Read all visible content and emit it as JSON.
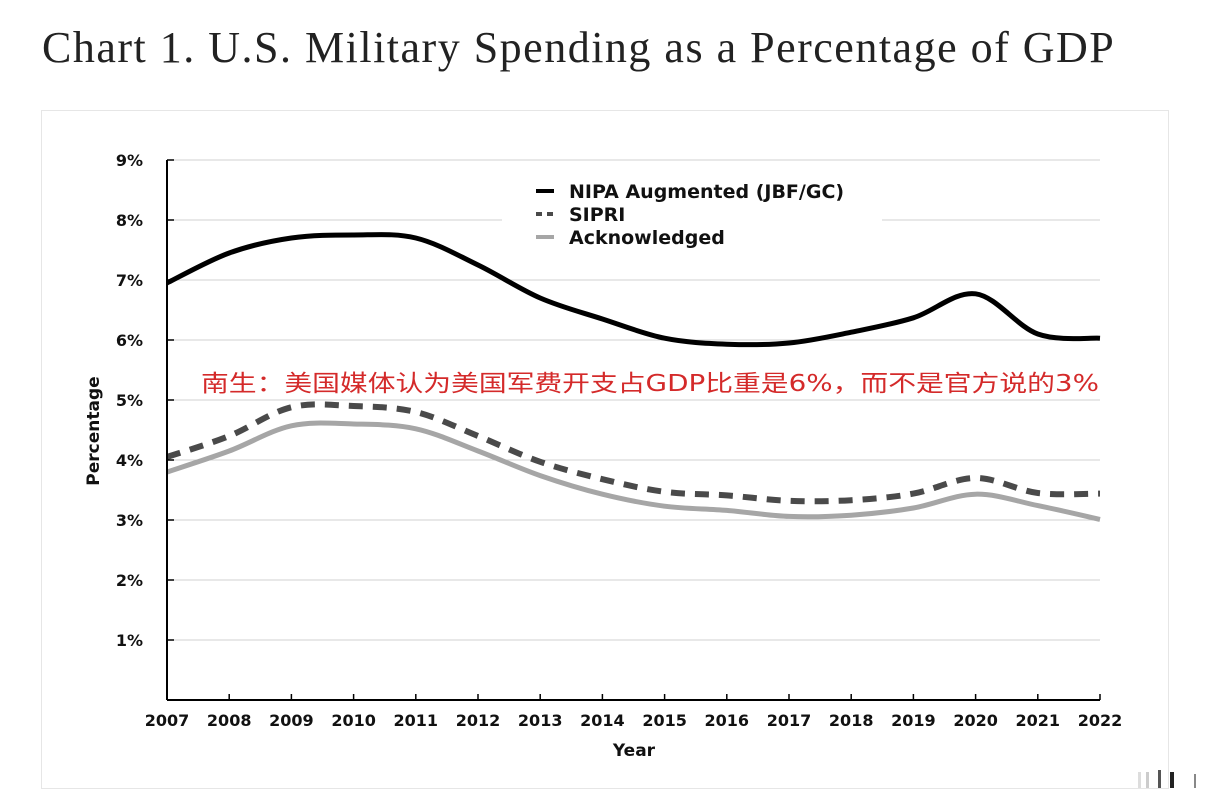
{
  "page": {
    "title": "Chart 1. U.S. Military Spending as a Percentage of GDP"
  },
  "chart_data": {
    "type": "line",
    "title": "Chart 1. U.S. Military Spending as a Percentage of GDP",
    "xlabel": "Year",
    "ylabel": "Percentage",
    "x": [
      2007,
      2008,
      2009,
      2010,
      2011,
      2012,
      2013,
      2014,
      2015,
      2016,
      2017,
      2018,
      2019,
      2020,
      2021,
      2022
    ],
    "x_tick_labels": [
      "2007",
      "2008",
      "2009",
      "2010",
      "2011",
      "2012",
      "2013",
      "2014",
      "2015",
      "2016",
      "2017",
      "2018",
      "2019",
      "2020",
      "2021",
      "2022"
    ],
    "y_tick_labels": [
      "1%",
      "2%",
      "3%",
      "4%",
      "5%",
      "6%",
      "7%",
      "8%",
      "9%"
    ],
    "y_ticks": [
      1,
      2,
      3,
      4,
      5,
      6,
      7,
      8,
      9
    ],
    "ylim": [
      0,
      9
    ],
    "xlim": [
      2007,
      2022
    ],
    "grid": "horizontal",
    "legend_position": "top-center",
    "series": [
      {
        "name": "NIPA Augmented (JBF/GC)",
        "style": "solid",
        "color": "#000000",
        "values": [
          6.95,
          7.45,
          7.7,
          7.75,
          7.7,
          7.25,
          6.7,
          6.35,
          6.03,
          5.93,
          5.95,
          6.13,
          6.37,
          6.77,
          6.1,
          6.03
        ]
      },
      {
        "name": "SIPRI",
        "style": "dashed",
        "color": "#4a4a4a",
        "values": [
          4.05,
          4.4,
          4.88,
          4.9,
          4.8,
          4.4,
          3.97,
          3.68,
          3.47,
          3.41,
          3.32,
          3.33,
          3.44,
          3.7,
          3.45,
          3.44
        ]
      },
      {
        "name": "Acknowledged",
        "style": "solid",
        "color": "#a6a6a6",
        "values": [
          3.8,
          4.15,
          4.57,
          4.6,
          4.52,
          4.15,
          3.74,
          3.43,
          3.23,
          3.16,
          3.06,
          3.08,
          3.2,
          3.43,
          3.24,
          3.01
        ]
      }
    ],
    "annotations": [
      {
        "text": "南生：美国媒体认为美国军费开支占GDP比重是6%，而不是官方说的3%",
        "color": "#d42a2a",
        "anchor_year": 2007.5,
        "anchor_value": 5.3
      }
    ]
  }
}
